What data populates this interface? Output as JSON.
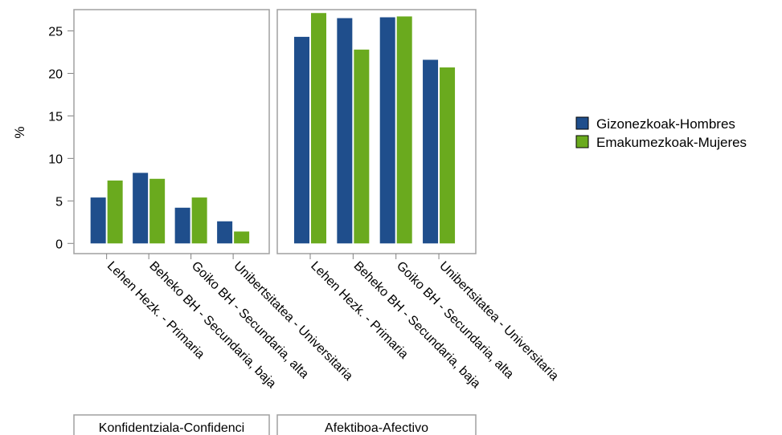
{
  "chart_data": {
    "type": "bar",
    "ylabel": "%",
    "ylim": [
      -1.2,
      27.5
    ],
    "yticks": [
      0,
      5,
      10,
      15,
      20,
      25
    ],
    "grid": false,
    "legend_position": "right",
    "categories": [
      "Lehen Hezk. - Primaria",
      "Beheko BH - Secundaria, baja",
      "Goiko BH - Secundaria, alta",
      "Unibertsitatea - Universitaria"
    ],
    "series": [
      {
        "name": "Gizonezkoak-Hombres",
        "color": "#1f4e8c"
      },
      {
        "name": "Emakumezkoak-Mujeres",
        "color": "#6aaa1e"
      }
    ],
    "panels": [
      {
        "label": "Konfidentziala-Confidenci",
        "values": [
          [
            5.4,
            7.4
          ],
          [
            8.3,
            7.6
          ],
          [
            4.2,
            5.4
          ],
          [
            2.6,
            1.4
          ]
        ]
      },
      {
        "label": "Afektiboa-Afectivo",
        "values": [
          [
            24.3,
            27.1
          ],
          [
            26.5,
            22.8
          ],
          [
            26.6,
            26.7
          ],
          [
            21.6,
            20.7
          ]
        ]
      }
    ]
  }
}
